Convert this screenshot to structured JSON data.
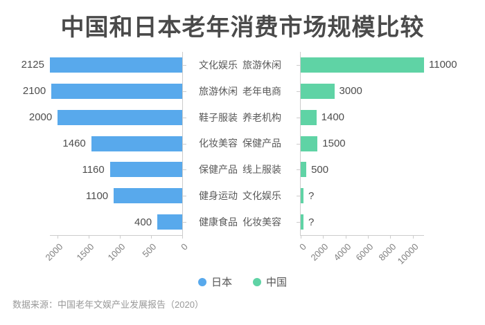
{
  "title": "中国和日本老年消费市场规模比较",
  "source_note": "数据来源：中国老年文娱产业发展报告（2020）",
  "colors": {
    "japan": "#58A9EC",
    "china": "#5FD3A5",
    "axis": "#cccccc",
    "tick_label": "#808080",
    "value_label": "#4d4d4d",
    "title": "#4a4a4a"
  },
  "legend": [
    {
      "label": "日本",
      "color": "#58A9EC"
    },
    {
      "label": "中国",
      "color": "#5FD3A5"
    }
  ],
  "chart_data": {
    "type": "bar",
    "layout": "bilateral-horizontal (tornado)",
    "title": "中国和日本老年消费市场规模比较",
    "series_left": "日本",
    "series_right": "中国",
    "rows": [
      {
        "japan_category": "文化娱乐",
        "china_category": "旅游休闲",
        "japan_value": 2125,
        "japan_display": "2125",
        "china_value": 11000,
        "china_display": "11000"
      },
      {
        "japan_category": "旅游休闲",
        "china_category": "老年电商",
        "japan_value": 2100,
        "japan_display": "2100",
        "china_value": 3000,
        "china_display": "3000"
      },
      {
        "japan_category": "鞋子服装",
        "china_category": "养老机构",
        "japan_value": 2000,
        "japan_display": "2000",
        "china_value": 1400,
        "china_display": "1400"
      },
      {
        "japan_category": "化妆美容",
        "china_category": "保健产品",
        "japan_value": 1460,
        "japan_display": "1460",
        "china_value": 1500,
        "china_display": "1500"
      },
      {
        "japan_category": "保健产品",
        "china_category": "线上服装",
        "japan_value": 1160,
        "japan_display": "1160",
        "china_value": 500,
        "china_display": "500"
      },
      {
        "japan_category": "健身运动",
        "china_category": "文化娱乐",
        "japan_value": 1100,
        "japan_display": "1100",
        "china_value": null,
        "china_display": "?"
      },
      {
        "japan_category": "健康食品",
        "china_category": "化妆美容",
        "japan_value": 400,
        "japan_display": "400",
        "china_value": null,
        "china_display": "?"
      }
    ],
    "left_axis": {
      "max": 2125,
      "inverted": true,
      "ticks": [
        "2000",
        "1500",
        "1000",
        "500",
        "0"
      ]
    },
    "right_axis": {
      "max": 11000,
      "inverted": false,
      "ticks": [
        "0",
        "2000",
        "4000",
        "6000",
        "8000",
        "10000"
      ]
    },
    "grid": false,
    "legend_position": "bottom-center"
  }
}
